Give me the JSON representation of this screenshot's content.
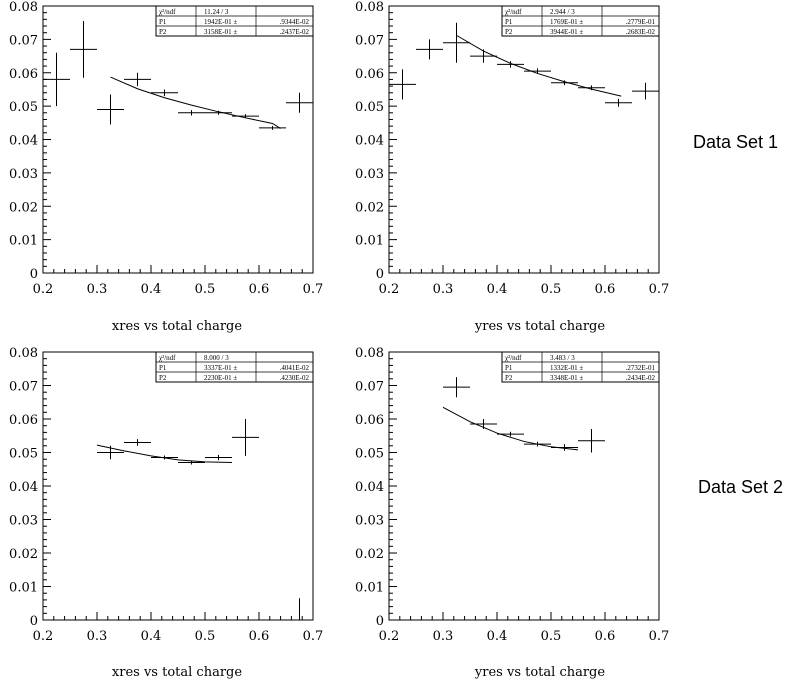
{
  "set_labels": [
    "Data Set 1",
    "Data Set 2"
  ],
  "chart_data": [
    {
      "type": "scatter",
      "xlabel": "xres vs total charge",
      "xlim": [
        0.2,
        0.7
      ],
      "ylim": [
        0,
        0.08
      ],
      "xticks": [
        "0.2",
        "0.3",
        "0.4",
        "0.5",
        "0.6",
        "0.7"
      ],
      "yticks": [
        "0",
        "0.01",
        "0.02",
        "0.03",
        "0.04",
        "0.05",
        "0.06",
        "0.07",
        "0.08"
      ],
      "grid": false,
      "stats": {
        "chi2_label": "χ²/ndf",
        "chi2": "11.24",
        "ndf": "3",
        "params": [
          {
            "name": "P1",
            "value": "1942E-01 ±",
            "error": ".9344E-02"
          },
          {
            "name": "P2",
            "value": "3158E-01 ±",
            "error": ".2437E-02"
          }
        ]
      },
      "points": [
        {
          "x": 0.225,
          "y": 0.058,
          "ex": 0.025,
          "ey": 0.008
        },
        {
          "x": 0.275,
          "y": 0.067,
          "ex": 0.025,
          "ey": 0.0085
        },
        {
          "x": 0.325,
          "y": 0.049,
          "ex": 0.025,
          "ey": 0.0045
        },
        {
          "x": 0.375,
          "y": 0.058,
          "ex": 0.025,
          "ey": 0.002
        },
        {
          "x": 0.425,
          "y": 0.054,
          "ex": 0.025,
          "ey": 0.001
        },
        {
          "x": 0.475,
          "y": 0.048,
          "ex": 0.025,
          "ey": 0.0008
        },
        {
          "x": 0.525,
          "y": 0.048,
          "ex": 0.025,
          "ey": 0.0006
        },
        {
          "x": 0.575,
          "y": 0.047,
          "ex": 0.025,
          "ey": 0.0006
        },
        {
          "x": 0.625,
          "y": 0.0435,
          "ex": 0.025,
          "ey": 0.0006
        },
        {
          "x": 0.675,
          "y": 0.051,
          "ex": 0.025,
          "ey": 0.003
        }
      ],
      "fit": {
        "x": [
          0.325,
          0.375,
          0.425,
          0.475,
          0.525,
          0.575,
          0.625,
          0.64
        ],
        "y": [
          0.0587,
          0.0552,
          0.0525,
          0.0503,
          0.0483,
          0.0465,
          0.0448,
          0.0433
        ]
      }
    },
    {
      "type": "scatter",
      "xlabel": "yres vs total charge",
      "xlim": [
        0.2,
        0.7
      ],
      "ylim": [
        0,
        0.08
      ],
      "xticks": [
        "0.2",
        "0.3",
        "0.4",
        "0.5",
        "0.6",
        "0.7"
      ],
      "yticks": [
        "0",
        "0.01",
        "0.02",
        "0.03",
        "0.04",
        "0.05",
        "0.06",
        "0.07",
        "0.08"
      ],
      "grid": false,
      "stats": {
        "chi2_label": "χ²/ndf",
        "chi2": "2.944",
        "ndf": "3",
        "params": [
          {
            "name": "P1",
            "value": "1769E-01 ±",
            "error": ".2779E-01"
          },
          {
            "name": "P2",
            "value": "3944E-01 ±",
            "error": ".2683E-02"
          }
        ]
      },
      "points": [
        {
          "x": 0.225,
          "y": 0.0565,
          "ex": 0.025,
          "ey": 0.0045
        },
        {
          "x": 0.275,
          "y": 0.067,
          "ex": 0.025,
          "ey": 0.003
        },
        {
          "x": 0.325,
          "y": 0.069,
          "ex": 0.025,
          "ey": 0.006
        },
        {
          "x": 0.375,
          "y": 0.065,
          "ex": 0.025,
          "ey": 0.002
        },
        {
          "x": 0.425,
          "y": 0.0625,
          "ex": 0.025,
          "ey": 0.001
        },
        {
          "x": 0.475,
          "y": 0.0605,
          "ex": 0.025,
          "ey": 0.0008
        },
        {
          "x": 0.525,
          "y": 0.057,
          "ex": 0.025,
          "ey": 0.0007
        },
        {
          "x": 0.575,
          "y": 0.0555,
          "ex": 0.025,
          "ey": 0.0007
        },
        {
          "x": 0.625,
          "y": 0.051,
          "ex": 0.025,
          "ey": 0.0012
        },
        {
          "x": 0.675,
          "y": 0.0545,
          "ex": 0.025,
          "ey": 0.0025
        }
      ],
      "fit": {
        "x": [
          0.325,
          0.375,
          0.425,
          0.475,
          0.525,
          0.575,
          0.63
        ],
        "y": [
          0.0712,
          0.0665,
          0.0628,
          0.0598,
          0.0573,
          0.0551,
          0.053
        ]
      }
    },
    {
      "type": "scatter",
      "xlabel": "xres vs total charge",
      "xlim": [
        0.2,
        0.7
      ],
      "ylim": [
        0,
        0.08
      ],
      "xticks": [
        "0.2",
        "0.3",
        "0.4",
        "0.5",
        "0.6",
        "0.7"
      ],
      "yticks": [
        "0",
        "0.01",
        "0.02",
        "0.03",
        "0.04",
        "0.05",
        "0.06",
        "0.07",
        "0.08"
      ],
      "grid": false,
      "stats": {
        "chi2_label": "χ²/ndf",
        "chi2": "8.000",
        "ndf": "3",
        "params": [
          {
            "name": "P1",
            "value": "3337E-01 ±",
            "error": ".4041E-02"
          },
          {
            "name": "P2",
            "value": "2230E-01 ±",
            "error": ".4230E-02"
          }
        ]
      },
      "points": [
        {
          "x": 0.325,
          "y": 0.05,
          "ex": 0.025,
          "ey": 0.002
        },
        {
          "x": 0.375,
          "y": 0.053,
          "ex": 0.025,
          "ey": 0.001
        },
        {
          "x": 0.425,
          "y": 0.0485,
          "ex": 0.025,
          "ey": 0.0006
        },
        {
          "x": 0.475,
          "y": 0.047,
          "ex": 0.025,
          "ey": 0.0006
        },
        {
          "x": 0.525,
          "y": 0.0485,
          "ex": 0.025,
          "ey": 0.0008
        },
        {
          "x": 0.575,
          "y": 0.0545,
          "ex": 0.025,
          "ey": 0.0055
        },
        {
          "x": 0.675,
          "y": 0.0,
          "ex": 0,
          "ey": 0.0065
        }
      ],
      "fit": {
        "x": [
          0.3,
          0.35,
          0.4,
          0.45,
          0.5,
          0.55
        ],
        "y": [
          0.0522,
          0.0505,
          0.049,
          0.0478,
          0.0472,
          0.047
        ]
      }
    },
    {
      "type": "scatter",
      "xlabel": "yres vs total charge",
      "xlim": [
        0.2,
        0.7
      ],
      "ylim": [
        0,
        0.08
      ],
      "xticks": [
        "0.2",
        "0.3",
        "0.4",
        "0.5",
        "0.6",
        "0.7"
      ],
      "yticks": [
        "0",
        "0.01",
        "0.02",
        "0.03",
        "0.04",
        "0.05",
        "0.06",
        "0.07",
        "0.08"
      ],
      "grid": false,
      "stats": {
        "chi2_label": "χ²/ndf",
        "chi2": "3.483",
        "ndf": "3",
        "params": [
          {
            "name": "P1",
            "value": "1332E-01 ±",
            "error": ".2732E-01"
          },
          {
            "name": "P2",
            "value": "3348E-01 ±",
            "error": ".2434E-02"
          }
        ]
      },
      "points": [
        {
          "x": 0.325,
          "y": 0.0695,
          "ex": 0.025,
          "ey": 0.003
        },
        {
          "x": 0.375,
          "y": 0.0585,
          "ex": 0.025,
          "ey": 0.0015
        },
        {
          "x": 0.425,
          "y": 0.0555,
          "ex": 0.025,
          "ey": 0.0007
        },
        {
          "x": 0.475,
          "y": 0.0525,
          "ex": 0.025,
          "ey": 0.0007
        },
        {
          "x": 0.525,
          "y": 0.0515,
          "ex": 0.025,
          "ey": 0.001
        },
        {
          "x": 0.575,
          "y": 0.0535,
          "ex": 0.025,
          "ey": 0.0035
        }
      ],
      "fit": {
        "x": [
          0.3,
          0.35,
          0.4,
          0.45,
          0.5,
          0.55
        ],
        "y": [
          0.0635,
          0.0592,
          0.0558,
          0.0533,
          0.0517,
          0.0508
        ]
      }
    }
  ]
}
